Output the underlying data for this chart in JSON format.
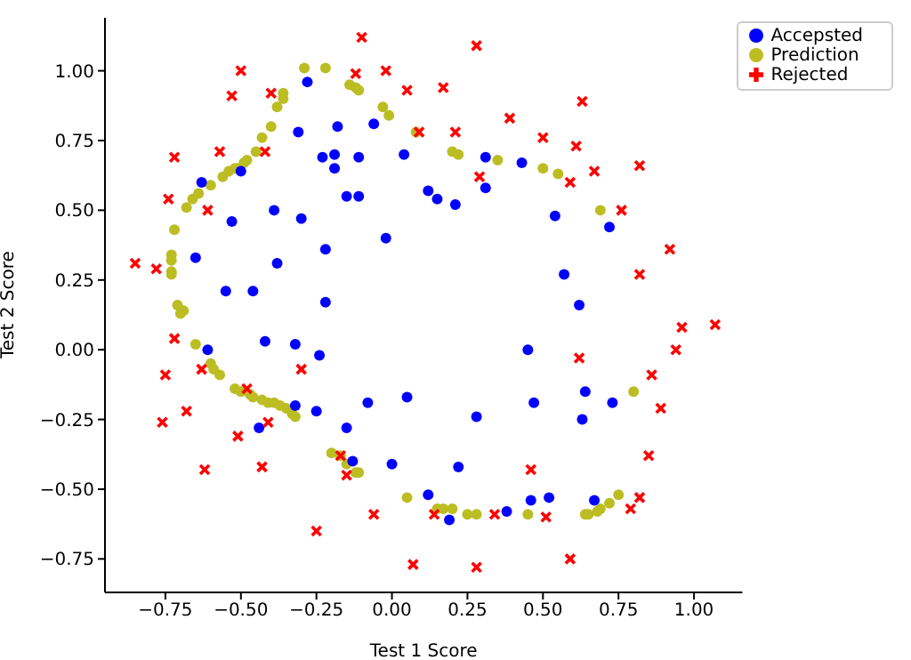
{
  "chart_data": {
    "type": "scatter",
    "xlabel": "Test 1 Score",
    "ylabel": "Test 2 Score",
    "xlim": [
      -0.95,
      1.16
    ],
    "ylim": [
      -0.87,
      1.19
    ],
    "xticks": [
      {
        "value": -0.75,
        "label": "−0.75"
      },
      {
        "value": -0.5,
        "label": "−0.50"
      },
      {
        "value": -0.25,
        "label": "−0.25"
      },
      {
        "value": 0,
        "label": "0.00"
      },
      {
        "value": 0.25,
        "label": "0.25"
      },
      {
        "value": 0.5,
        "label": "0.50"
      },
      {
        "value": 0.75,
        "label": "0.75"
      },
      {
        "value": 1,
        "label": "1.00"
      }
    ],
    "yticks": [
      {
        "value": -0.75,
        "label": "−0.75"
      },
      {
        "value": -0.5,
        "label": "−0.50"
      },
      {
        "value": -0.25,
        "label": "−0.25"
      },
      {
        "value": 0,
        "label": "0.00"
      },
      {
        "value": 0.25,
        "label": "0.25"
      },
      {
        "value": 0.5,
        "label": "0.50"
      },
      {
        "value": 0.75,
        "label": "0.75"
      },
      {
        "value": 1,
        "label": "1.00"
      }
    ],
    "grid": false,
    "legend": "top right",
    "series": [
      {
        "name": "Prediction",
        "color": "#bcbd22",
        "marker": "circle",
        "x": [
          -0.29,
          -0.22,
          -0.14,
          -0.12,
          -0.11,
          -0.03,
          -0.01,
          0.08,
          -0.36,
          -0.36,
          -0.38,
          -0.4,
          -0.43,
          -0.45,
          -0.48,
          -0.49,
          -0.51,
          -0.52,
          -0.54,
          -0.56,
          -0.6,
          -0.64,
          -0.66,
          -0.68,
          -0.72,
          -0.73,
          -0.73,
          -0.73,
          -0.73,
          -0.71,
          -0.69,
          -0.7,
          -0.65,
          -0.6,
          -0.59,
          -0.57,
          -0.52,
          -0.5,
          -0.47,
          -0.46,
          -0.43,
          -0.41,
          -0.39,
          -0.37,
          -0.35,
          -0.33,
          -0.32,
          -0.2,
          -0.17,
          -0.15,
          -0.12,
          -0.11,
          0.05,
          0.15,
          0.17,
          0.2,
          0.25,
          0.28,
          0.45,
          0.64,
          0.65,
          0.68,
          0.69,
          0.72,
          0.75,
          0.8,
          0.2,
          0.22,
          0.35,
          0.5,
          0.55,
          0.69
        ],
        "values": [
          1.01,
          1.01,
          0.95,
          0.94,
          0.93,
          0.87,
          0.84,
          0.78,
          0.92,
          0.9,
          0.87,
          0.8,
          0.76,
          0.71,
          0.68,
          0.67,
          0.65,
          0.65,
          0.64,
          0.62,
          0.59,
          0.56,
          0.54,
          0.51,
          0.43,
          0.34,
          0.32,
          0.28,
          0.27,
          0.16,
          0.14,
          0.13,
          0.02,
          -0.05,
          -0.07,
          -0.09,
          -0.14,
          -0.15,
          -0.16,
          -0.17,
          -0.18,
          -0.19,
          -0.19,
          -0.2,
          -0.21,
          -0.23,
          -0.24,
          -0.37,
          -0.38,
          -0.41,
          -0.44,
          -0.44,
          -0.53,
          -0.57,
          -0.57,
          -0.57,
          -0.59,
          -0.59,
          -0.59,
          -0.59,
          -0.59,
          -0.58,
          -0.57,
          -0.55,
          -0.52,
          -0.15,
          0.71,
          0.7,
          0.68,
          0.65,
          0.63,
          0.5
        ]
      },
      {
        "name": "Accepsted",
        "color": "#0000ff",
        "marker": "circle",
        "x": [
          -0.28,
          -0.31,
          -0.18,
          -0.06,
          -0.23,
          -0.19,
          -0.11,
          0.04,
          -0.19,
          -0.63,
          -0.5,
          -0.15,
          -0.11,
          -0.39,
          -0.53,
          -0.3,
          -0.02,
          -0.65,
          -0.38,
          -0.22,
          -0.55,
          -0.46,
          -0.22,
          0.31,
          0.43,
          0.12,
          0.15,
          0.21,
          0.31,
          0.54,
          0.72,
          0.57,
          0.62,
          0.45,
          0.64,
          0.47,
          0.73,
          0.63,
          0.28,
          0.05,
          0.22,
          0.12,
          0.19,
          0.38,
          0.46,
          0.52,
          0.67,
          -0.61,
          -0.42,
          -0.32,
          -0.24,
          -0.32,
          -0.25,
          -0.44,
          -0.15,
          -0.08,
          -0.13,
          0.0
        ],
        "values": [
          0.96,
          0.78,
          0.8,
          0.81,
          0.69,
          0.7,
          0.69,
          0.7,
          0.65,
          0.6,
          0.64,
          0.55,
          0.55,
          0.5,
          0.46,
          0.47,
          0.4,
          0.33,
          0.31,
          0.36,
          0.21,
          0.21,
          0.17,
          0.69,
          0.67,
          0.57,
          0.54,
          0.52,
          0.58,
          0.48,
          0.44,
          0.27,
          0.16,
          0.0,
          -0.15,
          -0.19,
          -0.19,
          -0.25,
          -0.24,
          -0.17,
          -0.42,
          -0.52,
          -0.61,
          -0.58,
          -0.54,
          -0.53,
          -0.54,
          0.0,
          0.03,
          0.02,
          -0.02,
          -0.2,
          -0.22,
          -0.28,
          -0.28,
          -0.19,
          -0.4,
          -0.41
        ]
      },
      {
        "name": "Rejected",
        "color": "#ff0000",
        "marker": "cross",
        "x": [
          -0.1,
          -0.5,
          -0.02,
          -0.12,
          -0.4,
          -0.53,
          0.05,
          0.09,
          -0.72,
          -0.57,
          -0.42,
          -0.74,
          -0.61,
          -0.85,
          -0.78,
          0.28,
          0.17,
          0.63,
          0.39,
          0.21,
          0.5,
          0.61,
          0.82,
          0.67,
          0.29,
          0.59,
          0.76,
          0.92,
          0.82,
          0.96,
          1.07,
          0.94,
          0.62,
          0.86,
          0.89,
          0.85,
          0.46,
          0.82,
          0.79,
          0.14,
          0.34,
          0.51,
          0.59,
          0.07,
          0.28,
          -0.72,
          -0.75,
          -0.63,
          -0.3,
          -0.48,
          -0.68,
          -0.76,
          -0.51,
          -0.41,
          -0.17,
          -0.15,
          -0.43,
          -0.62,
          -0.06,
          -0.25
        ],
        "values": [
          1.12,
          1.0,
          1.0,
          0.99,
          0.92,
          0.91,
          0.93,
          0.78,
          0.69,
          0.71,
          0.71,
          0.54,
          0.5,
          0.31,
          0.29,
          1.09,
          0.94,
          0.89,
          0.83,
          0.78,
          0.76,
          0.73,
          0.66,
          0.64,
          0.62,
          0.6,
          0.5,
          0.36,
          0.27,
          0.08,
          0.09,
          0.0,
          -0.03,
          -0.09,
          -0.21,
          -0.38,
          -0.43,
          -0.53,
          -0.57,
          -0.59,
          -0.59,
          -0.6,
          -0.75,
          -0.77,
          -0.78,
          0.04,
          -0.09,
          -0.07,
          -0.07,
          -0.14,
          -0.22,
          -0.26,
          -0.31,
          -0.26,
          -0.38,
          -0.45,
          -0.42,
          -0.43,
          -0.59,
          -0.65
        ]
      }
    ]
  }
}
